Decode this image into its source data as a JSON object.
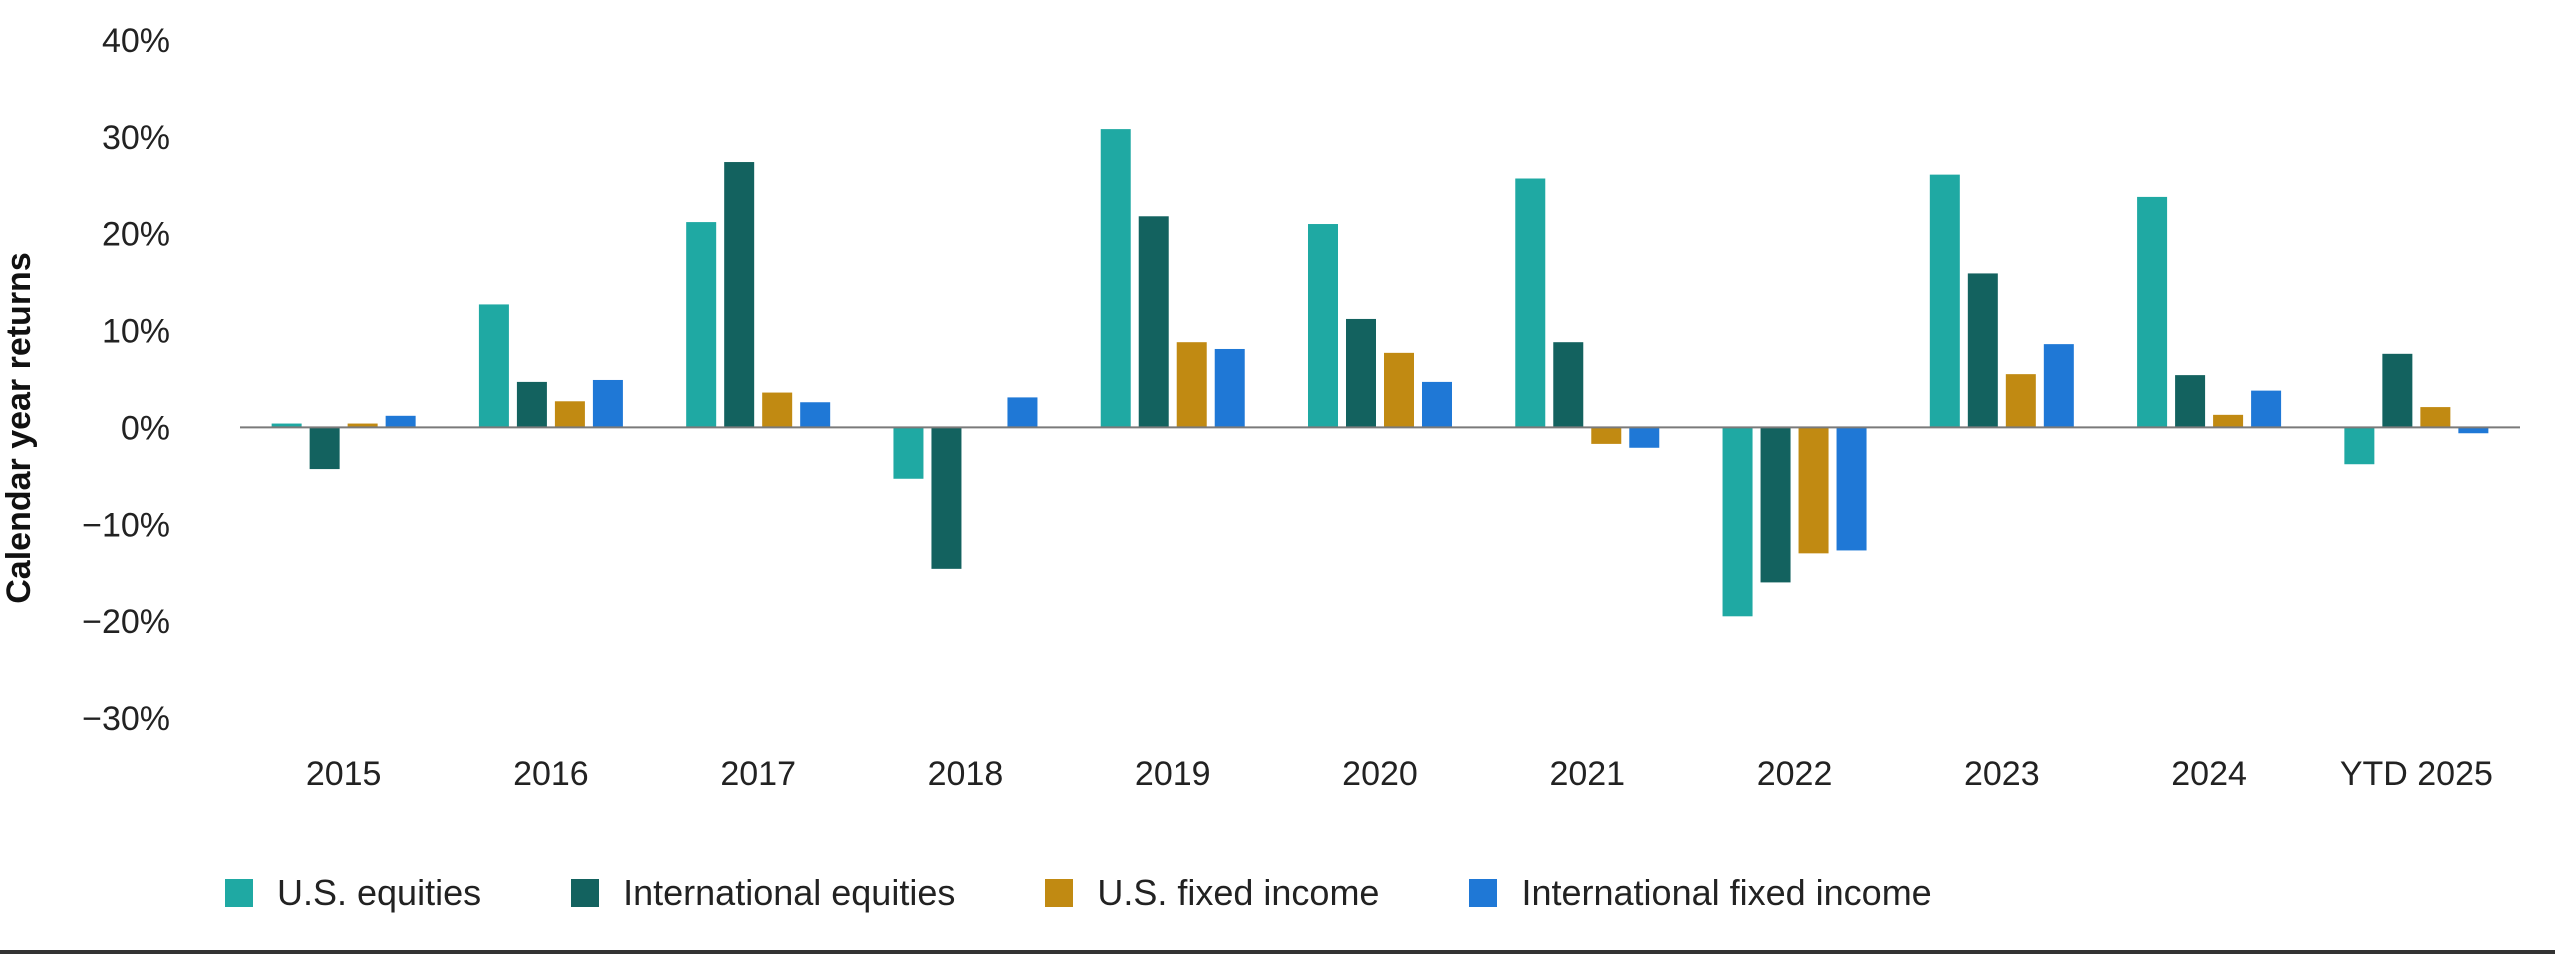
{
  "chart_data": {
    "type": "bar",
    "title": "",
    "xlabel": "",
    "ylabel": "Calendar year returns",
    "ylim": [
      -30,
      40
    ],
    "yticks": [
      40,
      30,
      20,
      10,
      0,
      -10,
      -20,
      -30
    ],
    "ytick_labels": [
      "40%",
      "30%",
      "20%",
      "10%",
      "0%",
      "−10%",
      "−20%",
      "−30%"
    ],
    "categories": [
      "2015",
      "2016",
      "2017",
      "2018",
      "2019",
      "2020",
      "2021",
      "2022",
      "2023",
      "2024",
      "YTD 2025"
    ],
    "series": [
      {
        "name": "U.S. equities",
        "color": "#1fa9a3",
        "values": [
          0.4,
          12.7,
          21.2,
          -5.3,
          30.8,
          21.0,
          25.7,
          -19.5,
          26.1,
          23.8,
          -3.8
        ]
      },
      {
        "name": "International equities",
        "color": "#13625f",
        "values": [
          -4.3,
          4.7,
          27.4,
          -14.6,
          21.8,
          11.2,
          8.8,
          -16.0,
          15.9,
          5.4,
          7.6
        ]
      },
      {
        "name": "U.S. fixed income",
        "color": "#c18a12",
        "values": [
          0.4,
          2.7,
          3.6,
          0.0,
          8.8,
          7.7,
          -1.7,
          -13.0,
          5.5,
          1.3,
          2.1
        ]
      },
      {
        "name": "International fixed income",
        "color": "#1f78d6",
        "values": [
          1.2,
          4.9,
          2.6,
          3.1,
          8.1,
          4.7,
          -2.1,
          -12.7,
          8.6,
          3.8,
          -0.6
        ]
      }
    ],
    "legend_position": "bottom-left",
    "grid": false
  }
}
